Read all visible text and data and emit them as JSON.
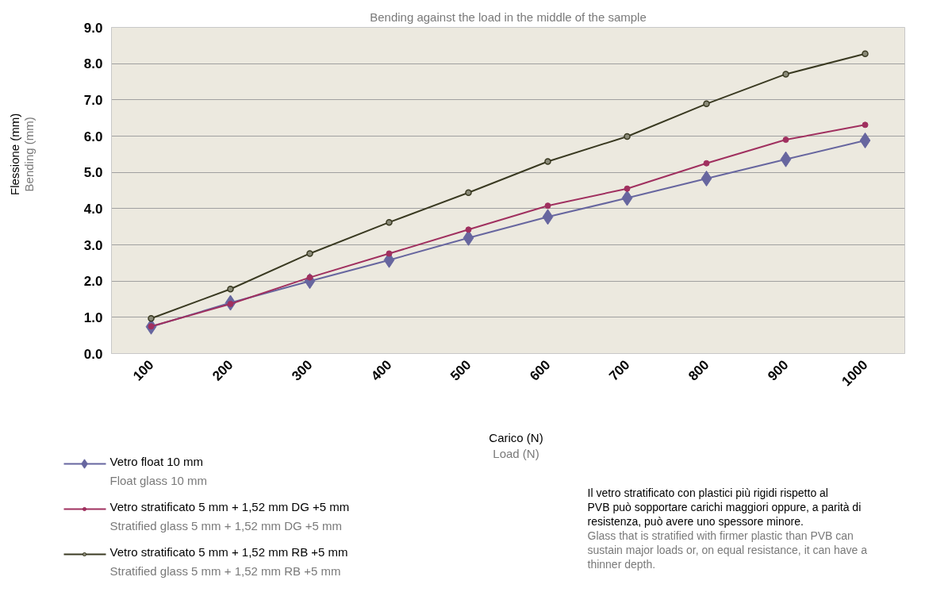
{
  "chart_data": {
    "type": "line",
    "subtitle": "Bending against the load in the middle of the sample",
    "xlabel": "Carico (N)\nLoad (N)",
    "ylabel": "Flessione (mm)\nBending (mm)",
    "categories": [
      "100",
      "200",
      "300",
      "400",
      "500",
      "600",
      "700",
      "800",
      "900",
      "1000"
    ],
    "series": [
      {
        "name": "Vetro float 10 mm\nFloat glass 10 mm",
        "color": "#67669f",
        "marker": "diamond",
        "values": [
          0.74,
          1.4,
          2.0,
          2.58,
          3.19,
          3.77,
          4.29,
          4.83,
          5.36,
          5.88
        ]
      },
      {
        "name": "Vetro stratificato 5 mm + 1,52 mm DG +5 mm\nStratified glass 5 mm + 1,52 mm DG +5 mm",
        "color": "#a0305f",
        "marker": "circle",
        "values": [
          0.75,
          1.37,
          2.1,
          2.76,
          3.42,
          4.08,
          4.55,
          5.25,
          5.9,
          6.31
        ]
      },
      {
        "name": "Vetro stratificato 5 mm + 1,52 mm RB +5 mm\nStratified glass 5 mm + 1,52 mm RB +5 mm",
        "color": "#3a3a22",
        "marker": "circle",
        "values": [
          0.97,
          1.78,
          2.76,
          3.62,
          4.44,
          5.3,
          5.99,
          6.89,
          7.71,
          8.27
        ]
      }
    ],
    "ylim": [
      0,
      9
    ],
    "yticks": [
      {
        "value": 0,
        "label": "0.0"
      },
      {
        "value": 1,
        "label": "1.0"
      },
      {
        "value": 2,
        "label": "2.0"
      },
      {
        "value": 3,
        "label": "3.0"
      },
      {
        "value": 4,
        "label": "4.0"
      },
      {
        "value": 5,
        "label": "5.0"
      },
      {
        "value": 6,
        "label": "6.0"
      },
      {
        "value": 7,
        "label": "7.0"
      },
      {
        "value": 8,
        "label": "8.0"
      },
      {
        "value": 9,
        "label": "9.0"
      }
    ],
    "grid": "y",
    "legend": "bottom left",
    "line_style": "solid",
    "annotations": [
      "Il vetro stratificato con plastici più rigidi rispetto al PVB può sopportare carichi maggiori oppure, a parità di resistenza, può avere uno spessore minore.",
      "Glass that is stratified with firmer plastic than PVB can sustain major loads or, on equal resistance, it can have a thinner depth."
    ]
  }
}
